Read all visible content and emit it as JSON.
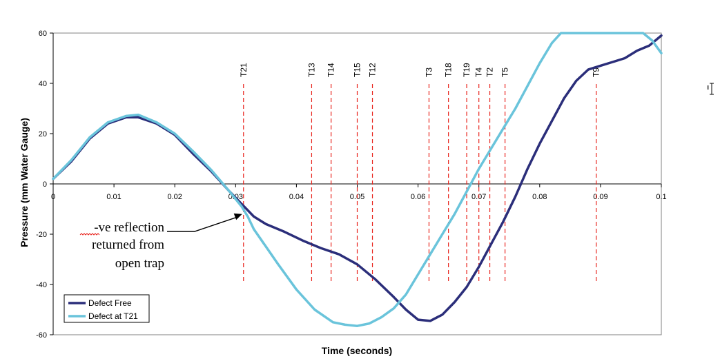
{
  "chart_data": {
    "type": "line",
    "title": "",
    "xlabel": "Time (seconds)",
    "ylabel": "Pressure (mm Water Gauge)",
    "xlim": [
      0,
      0.1
    ],
    "ylim": [
      -60,
      60
    ],
    "x_ticks": [
      0,
      0.01,
      0.02,
      0.03,
      0.04,
      0.05,
      0.06,
      0.07,
      0.08,
      0.09,
      0.1
    ],
    "x_tick_labels": [
      "0",
      "0.01",
      "0.02",
      "0.03",
      "0.04",
      "0.05",
      "0.06",
      "0.07",
      "0.08",
      "0.09",
      "0.1"
    ],
    "y_ticks": [
      -60,
      -40,
      -20,
      0,
      20,
      40,
      60
    ],
    "y_tick_labels": [
      "-60",
      "-40",
      "-20",
      "0",
      "20",
      "40",
      "60"
    ],
    "grid": false,
    "legend": "bottom-left",
    "series": [
      {
        "name": "Defect Free",
        "color": "#2b2e7a",
        "x": [
          0,
          0.003,
          0.006,
          0.009,
          0.012,
          0.014,
          0.017,
          0.02,
          0.023,
          0.026,
          0.029,
          0.031,
          0.033,
          0.035,
          0.038,
          0.041,
          0.044,
          0.047,
          0.05,
          0.053,
          0.056,
          0.058,
          0.06,
          0.062,
          0.064,
          0.066,
          0.068,
          0.07,
          0.072,
          0.074,
          0.076,
          0.078,
          0.08,
          0.082,
          0.084,
          0.086,
          0.088,
          0.09,
          0.092,
          0.094,
          0.096,
          0.098,
          0.1
        ],
        "y": [
          2,
          9,
          18,
          24,
          26.5,
          26.5,
          24,
          19.5,
          12,
          5,
          -3,
          -8,
          -13,
          -16,
          -19,
          -22.5,
          -25.5,
          -28,
          -32,
          -38,
          -45,
          -50,
          -54,
          -54.5,
          -52,
          -47,
          -41,
          -33,
          -24,
          -15,
          -5,
          6,
          16,
          25,
          34,
          41,
          45.5,
          47,
          48.5,
          50,
          53,
          55,
          59
        ]
      },
      {
        "name": "Defect at T21",
        "color": "#6ac4db",
        "x": [
          0,
          0.003,
          0.006,
          0.009,
          0.012,
          0.014,
          0.017,
          0.02,
          0.023,
          0.026,
          0.029,
          0.031,
          0.032,
          0.033,
          0.035,
          0.037,
          0.04,
          0.043,
          0.046,
          0.048,
          0.05,
          0.052,
          0.054,
          0.056,
          0.058,
          0.06,
          0.062,
          0.064,
          0.066,
          0.068,
          0.07,
          0.072,
          0.074,
          0.076,
          0.078,
          0.08,
          0.082,
          0.0835,
          0.097,
          0.0985,
          0.1
        ],
        "y": [
          2,
          9.5,
          18.5,
          24.5,
          27,
          27.5,
          24.5,
          20,
          13,
          5.5,
          -3,
          -9,
          -13,
          -18,
          -25,
          -32,
          -42,
          -50,
          -55,
          -56,
          -56.5,
          -55.5,
          -53,
          -49.5,
          -44,
          -36,
          -28,
          -20,
          -12,
          -3,
          6,
          14,
          22,
          30,
          39,
          48,
          56,
          60,
          60,
          57,
          52
        ]
      }
    ],
    "markers": [
      {
        "label": "T21",
        "x": 0.0313
      },
      {
        "label": "T13",
        "x": 0.0425
      },
      {
        "label": "T14",
        "x": 0.0457
      },
      {
        "label": "T15",
        "x": 0.05
      },
      {
        "label": "T12",
        "x": 0.0525
      },
      {
        "label": "T3",
        "x": 0.0618
      },
      {
        "label": "T18",
        "x": 0.065
      },
      {
        "label": "T19",
        "x": 0.068
      },
      {
        "label": "T4",
        "x": 0.07
      },
      {
        "label": "T2",
        "x": 0.0718
      },
      {
        "label": "T5",
        "x": 0.0743
      },
      {
        "label": "T9",
        "x": 0.0893
      }
    ],
    "marker_color": "#e8231c",
    "annotation": {
      "lines": [
        "-ve reflection",
        "returned from",
        "open trap"
      ],
      "points_to": {
        "x": 0.0313,
        "y": -12
      }
    }
  }
}
